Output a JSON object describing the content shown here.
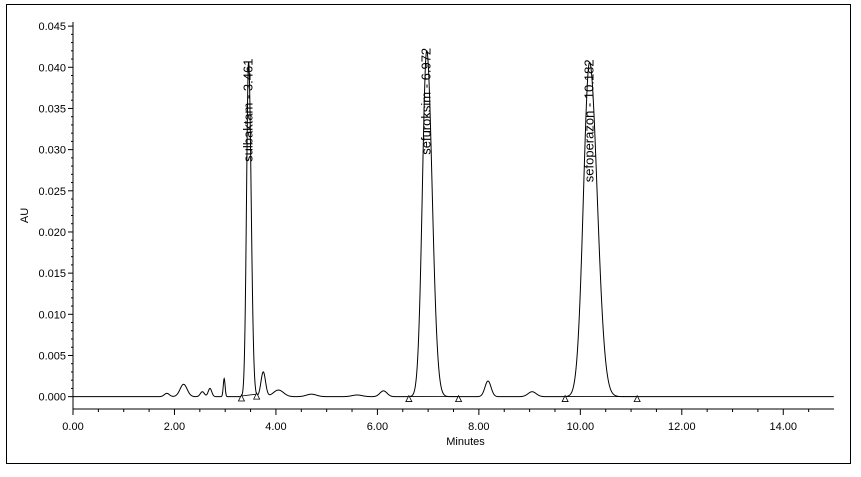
{
  "chart_data": {
    "type": "line",
    "xlabel": "Minutes",
    "ylabel": "AU",
    "xlim": [
      0,
      15
    ],
    "ylim": [
      -0.0015,
      0.0455
    ],
    "xticks": [
      0,
      2,
      4,
      6,
      8,
      10,
      12,
      14
    ],
    "xtick_labels": [
      "0.00",
      "2.00",
      "4.00",
      "6.00",
      "8.00",
      "10.00",
      "12.00",
      "14.00"
    ],
    "yticks": [
      0.0,
      0.005,
      0.01,
      0.015,
      0.02,
      0.025,
      0.03,
      0.035,
      0.04,
      0.045
    ],
    "ytick_labels": [
      "0.000",
      "0.005",
      "0.010",
      "0.015",
      "0.020",
      "0.025",
      "0.030",
      "0.035",
      "0.040",
      "0.045"
    ],
    "grid": false,
    "peaks": [
      {
        "label": "sulbaktam - 3.461",
        "retention_time": 3.461,
        "height": 0.0407,
        "sigma": 0.04,
        "integration_start": 3.32,
        "integration_end": 3.62
      },
      {
        "label": "sefuroksim - 6.972",
        "retention_time": 6.972,
        "height": 0.042,
        "sigma": 0.085,
        "integration_start": 6.62,
        "integration_end": 7.6
      },
      {
        "label": "sefoperazon - 10.182",
        "retention_time": 10.182,
        "height": 0.0406,
        "sigma": 0.12,
        "integration_start": 9.7,
        "integration_end": 11.12
      }
    ],
    "minor_peaks": [
      {
        "x": 1.85,
        "y": 0.0004,
        "sigma": 0.05
      },
      {
        "x": 2.18,
        "y": 0.0015,
        "sigma": 0.07
      },
      {
        "x": 2.55,
        "y": 0.0006,
        "sigma": 0.04
      },
      {
        "x": 2.7,
        "y": 0.001,
        "sigma": 0.035
      },
      {
        "x": 2.98,
        "y": 0.0022,
        "sigma": 0.018
      },
      {
        "x": 3.75,
        "y": 0.003,
        "sigma": 0.045
      },
      {
        "x": 4.05,
        "y": 0.0008,
        "sigma": 0.1
      },
      {
        "x": 4.7,
        "y": 0.0003,
        "sigma": 0.1
      },
      {
        "x": 5.6,
        "y": 0.0002,
        "sigma": 0.1
      },
      {
        "x": 6.12,
        "y": 0.0007,
        "sigma": 0.07
      },
      {
        "x": 8.18,
        "y": 0.0019,
        "sigma": 0.06
      },
      {
        "x": 9.05,
        "y": 0.0006,
        "sigma": 0.08
      }
    ]
  }
}
